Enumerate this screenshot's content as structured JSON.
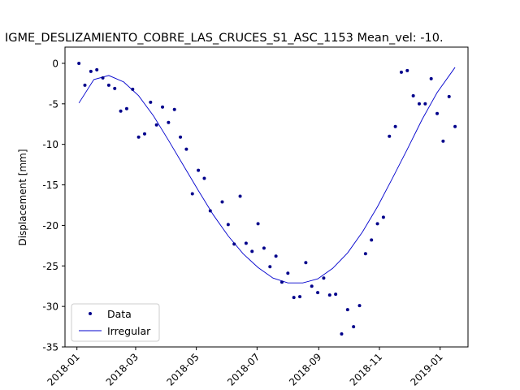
{
  "chart_data": {
    "type": "scatter",
    "title": "IGME_DESLIZAMIENTO_COBRE_LAS_CRUCES_S1_ASC_1153     Mean_vel: -10.",
    "xlabel": "",
    "ylabel": "Displacement [mm]",
    "xlim": [
      "2017-12-20",
      "2019-01-29"
    ],
    "ylim": [
      -35,
      2
    ],
    "x_ticks": [
      "2018-01",
      "2018-03",
      "2018-05",
      "2018-07",
      "2018-09",
      "2018-11",
      "2019-01"
    ],
    "y_ticks": [
      0,
      -5,
      -10,
      -15,
      -20,
      -25,
      -30,
      -35
    ],
    "legend_position": "lower-left",
    "grid": false,
    "series": [
      {
        "name": "Data",
        "kind": "points",
        "color": "#00008b",
        "x": [
          "2018-01-03",
          "2018-01-09",
          "2018-01-15",
          "2018-01-21",
          "2018-01-27",
          "2018-02-02",
          "2018-02-08",
          "2018-02-14",
          "2018-02-20",
          "2018-02-26",
          "2018-03-04",
          "2018-03-10",
          "2018-03-16",
          "2018-03-22",
          "2018-03-28",
          "2018-04-03",
          "2018-04-09",
          "2018-04-15",
          "2018-04-21",
          "2018-04-27",
          "2018-05-03",
          "2018-05-09",
          "2018-05-15",
          "2018-05-27",
          "2018-06-02",
          "2018-06-08",
          "2018-06-14",
          "2018-06-20",
          "2018-06-26",
          "2018-07-02",
          "2018-07-08",
          "2018-07-14",
          "2018-07-20",
          "2018-07-26",
          "2018-08-01",
          "2018-08-07",
          "2018-08-13",
          "2018-08-19",
          "2018-08-25",
          "2018-08-31",
          "2018-09-06",
          "2018-09-12",
          "2018-09-18",
          "2018-09-24",
          "2018-09-30",
          "2018-10-06",
          "2018-10-12",
          "2018-10-18",
          "2018-10-24",
          "2018-10-30",
          "2018-11-05",
          "2018-11-11",
          "2018-11-17",
          "2018-11-23",
          "2018-11-29",
          "2018-12-05",
          "2018-12-11",
          "2018-12-17",
          "2018-12-23",
          "2018-12-29",
          "2019-01-04",
          "2019-01-10",
          "2019-01-16"
        ],
        "y": [
          0.0,
          -2.7,
          -1.0,
          -0.8,
          -1.8,
          -2.7,
          -3.1,
          -5.9,
          -5.6,
          -3.2,
          -9.1,
          -8.7,
          -4.8,
          -7.6,
          -5.4,
          -7.3,
          -5.7,
          -9.1,
          -10.6,
          -16.1,
          -13.2,
          -14.2,
          -18.2,
          -17.1,
          -19.9,
          -22.3,
          -16.4,
          -22.2,
          -23.2,
          -19.8,
          -22.8,
          -25.1,
          -23.8,
          -27.0,
          -25.9,
          -28.9,
          -28.8,
          -24.6,
          -27.5,
          -28.3,
          -26.5,
          -28.6,
          -28.5,
          -33.4,
          -30.4,
          -32.5,
          -29.9,
          -23.5,
          -21.8,
          -19.8,
          -19.0,
          -9.0,
          -7.8,
          -1.1,
          -0.9,
          -4.0,
          -5.0,
          -5.0,
          -1.9,
          -6.2,
          -9.6,
          -4.1,
          -7.8
        ]
      },
      {
        "name": "Irregular",
        "kind": "line",
        "color": "#0000cd",
        "x": [
          "2018-01-03",
          "2018-01-18",
          "2018-02-02",
          "2018-02-17",
          "2018-03-04",
          "2018-03-19",
          "2018-04-03",
          "2018-04-18",
          "2018-05-03",
          "2018-05-18",
          "2018-06-02",
          "2018-06-17",
          "2018-07-02",
          "2018-07-17",
          "2018-08-01",
          "2018-08-16",
          "2018-08-31",
          "2018-09-15",
          "2018-09-30",
          "2018-10-15",
          "2018-10-30",
          "2018-11-14",
          "2018-11-29",
          "2018-12-14",
          "2018-12-29",
          "2019-01-16"
        ],
        "y": [
          -4.9,
          -2.0,
          -1.5,
          -2.3,
          -4.0,
          -6.5,
          -9.5,
          -12.6,
          -15.7,
          -18.7,
          -21.3,
          -23.5,
          -25.2,
          -26.5,
          -27.1,
          -27.1,
          -26.6,
          -25.3,
          -23.4,
          -20.8,
          -17.7,
          -14.2,
          -10.6,
          -6.9,
          -3.6,
          -0.5
        ]
      }
    ]
  }
}
